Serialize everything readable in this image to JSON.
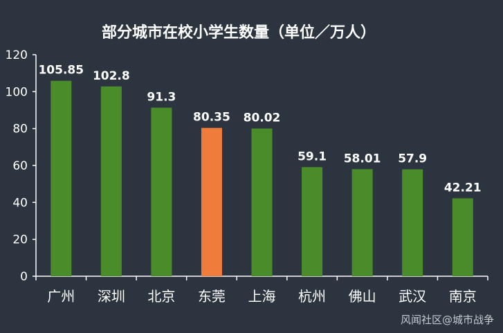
{
  "chart_data": {
    "type": "bar",
    "title": "部分城市在校小学生数量（单位／万人）",
    "categories": [
      "广州",
      "深圳",
      "北京",
      "东莞",
      "上海",
      "杭州",
      "佛山",
      "武汉",
      "南京"
    ],
    "values": [
      105.85,
      102.8,
      91.3,
      80.35,
      80.02,
      59.1,
      58.01,
      57.9,
      42.21
    ],
    "data_labels": [
      "105.85",
      "102.8",
      "91.3",
      "80.35",
      "80.02",
      "59.1",
      "58.01",
      "57.9",
      "42.21"
    ],
    "ylim": [
      0,
      120
    ],
    "yticks": [
      0,
      20,
      40,
      60,
      80,
      100,
      120
    ],
    "grid": false,
    "legend": "none",
    "colors": {
      "default_bar": "#4a8c2a",
      "highlight_bar": "#f07c3c",
      "background": "#2c3440",
      "axis": "#ffffff",
      "text": "#ffffff"
    },
    "highlight_index": 3
  },
  "watermark": "风闻社区@城市战争"
}
